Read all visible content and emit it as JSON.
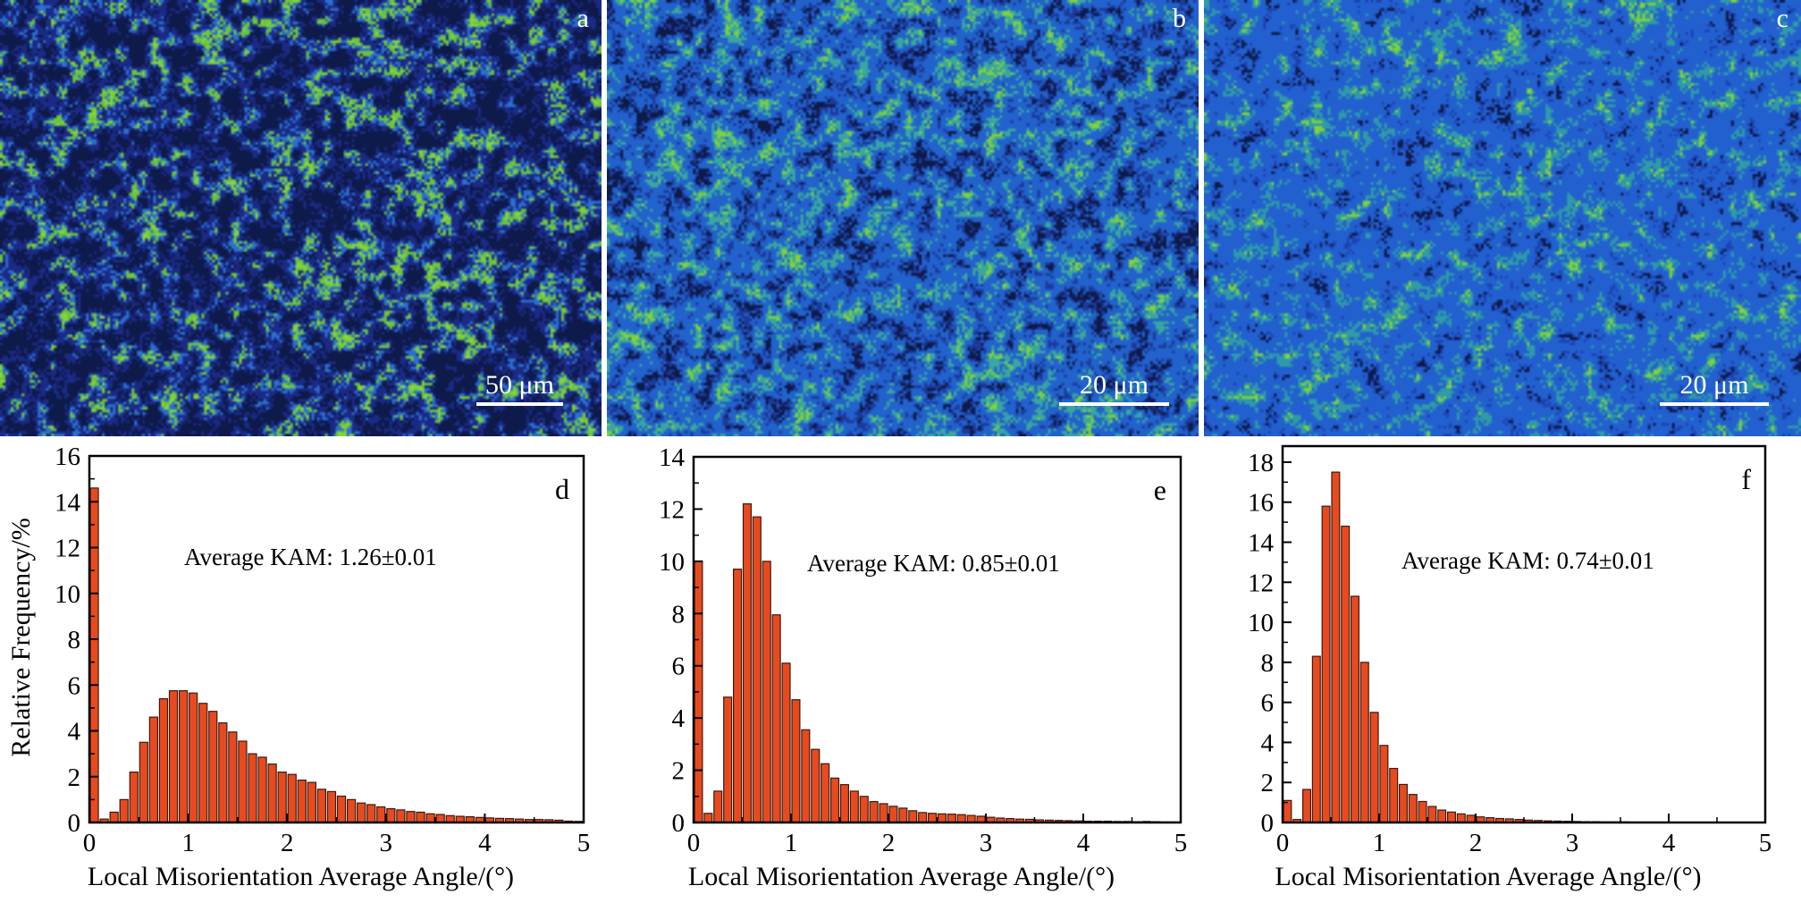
{
  "maps": [
    {
      "letter": "a",
      "scale_bar": "50 μm",
      "palette": [
        "#86d63c",
        "#6cc43a",
        "#2a6fd0",
        "#1b2a86",
        "#0e1a4a"
      ],
      "weights": [
        0.42,
        0.25,
        0.13,
        0.15,
        0.05
      ]
    },
    {
      "letter": "b",
      "scale_bar": "20 μm",
      "palette": [
        "#7ed23e",
        "#3aa6a0",
        "#2162cc",
        "#1c3a9a",
        "#0e1a4a"
      ],
      "weights": [
        0.18,
        0.14,
        0.38,
        0.22,
        0.08
      ]
    },
    {
      "letter": "c",
      "scale_bar": "20 μm",
      "palette": [
        "#7ed23e",
        "#2f9aa8",
        "#2260d0",
        "#1c44b0",
        "#0e1a4a"
      ],
      "weights": [
        0.08,
        0.1,
        0.52,
        0.24,
        0.06
      ]
    }
  ],
  "bar_color": "#e84a1f",
  "chart_data": [
    {
      "type": "bar",
      "letter": "d",
      "annotation": "Average KAM: 1.26±0.01",
      "xlabel": "Local Misorientation Average Angle/(°)",
      "ylabel": "Relative Frequency/%",
      "xlim": [
        0,
        5
      ],
      "ylim": [
        0,
        16
      ],
      "xticks": [
        0,
        1,
        2,
        3,
        4,
        5
      ],
      "yticks": [
        0,
        2,
        4,
        6,
        8,
        10,
        12,
        14,
        16
      ],
      "bin_width": 0.1,
      "values": [
        14.6,
        0.15,
        0.45,
        1.0,
        2.2,
        3.5,
        4.6,
        5.4,
        5.75,
        5.75,
        5.65,
        5.2,
        4.85,
        4.35,
        3.95,
        3.55,
        3.0,
        2.85,
        2.55,
        2.2,
        2.1,
        1.85,
        1.75,
        1.45,
        1.35,
        1.15,
        1.0,
        0.85,
        0.78,
        0.68,
        0.6,
        0.55,
        0.48,
        0.45,
        0.38,
        0.35,
        0.3,
        0.27,
        0.25,
        0.22,
        0.2,
        0.18,
        0.17,
        0.15,
        0.13,
        0.13,
        0.12,
        0.1,
        0.06,
        0.05
      ]
    },
    {
      "type": "bar",
      "letter": "e",
      "annotation": "Average KAM: 0.85±0.01",
      "xlabel": "Local Misorientation Average Angle/(°)",
      "ylabel": "",
      "xlim": [
        0,
        5
      ],
      "ylim": [
        0,
        14
      ],
      "xticks": [
        0,
        1,
        2,
        3,
        4,
        5
      ],
      "yticks": [
        0,
        2,
        4,
        6,
        8,
        10,
        12,
        14
      ],
      "bin_width": 0.1,
      "values": [
        10.0,
        0.35,
        1.2,
        4.8,
        9.7,
        12.2,
        11.7,
        10.0,
        7.95,
        6.1,
        4.7,
        3.55,
        2.8,
        2.25,
        1.7,
        1.45,
        1.2,
        1.0,
        0.8,
        0.72,
        0.62,
        0.55,
        0.45,
        0.38,
        0.35,
        0.33,
        0.32,
        0.3,
        0.27,
        0.24,
        0.2,
        0.17,
        0.15,
        0.13,
        0.12,
        0.1,
        0.09,
        0.08,
        0.07,
        0.06,
        0.05,
        0.05,
        0.05,
        0.04,
        0.04,
        0.03,
        0.04,
        0.03,
        0.02,
        0.02
      ]
    },
    {
      "type": "bar",
      "letter": "f",
      "annotation": "Average KAM: 0.74±0.01",
      "xlabel": "Local Misorientation Average Angle/(°)",
      "ylabel": "",
      "xlim": [
        0,
        5
      ],
      "ylim": [
        0,
        18.8
      ],
      "xticks": [
        0,
        1,
        2,
        3,
        4,
        5
      ],
      "yticks": [
        0,
        2,
        4,
        6,
        8,
        10,
        12,
        14,
        16,
        18
      ],
      "bin_width": 0.1,
      "values": [
        1.1,
        0.15,
        1.65,
        8.3,
        15.8,
        17.5,
        14.8,
        11.3,
        8.0,
        5.5,
        3.85,
        2.7,
        1.9,
        1.4,
        1.05,
        0.8,
        0.62,
        0.52,
        0.43,
        0.36,
        0.28,
        0.24,
        0.2,
        0.18,
        0.15,
        0.12,
        0.1,
        0.08,
        0.07,
        0.06,
        0.05,
        0.04,
        0.04,
        0.03,
        0.03,
        0.03,
        0.02,
        0.02,
        0.02,
        0.02,
        0.01,
        0.01,
        0.01,
        0.01,
        0.01,
        0.01,
        0.01,
        0.01,
        0.01,
        0.01
      ]
    }
  ]
}
